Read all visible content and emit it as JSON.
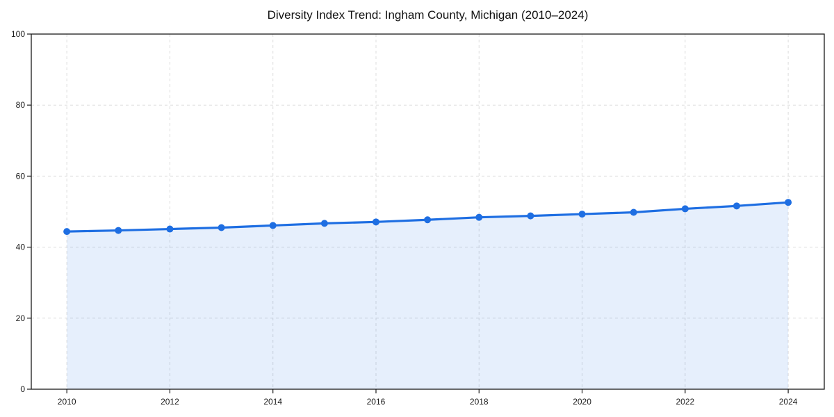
{
  "chart_data": {
    "type": "area",
    "title": "Diversity Index Trend: Ingham County, Michigan (2010–2024)",
    "series_name": "Diversity Index",
    "x": [
      2010,
      2011,
      2012,
      2013,
      2014,
      2015,
      2016,
      2017,
      2018,
      2019,
      2020,
      2021,
      2022,
      2023,
      2024
    ],
    "values": [
      44.4,
      44.7,
      45.1,
      45.5,
      46.1,
      46.7,
      47.1,
      47.7,
      48.4,
      48.8,
      49.3,
      49.8,
      50.8,
      51.6,
      52.6
    ],
    "x_ticks": [
      2010,
      2012,
      2014,
      2016,
      2018,
      2020,
      2022,
      2024
    ],
    "y_ticks": [
      0,
      20,
      40,
      60,
      80,
      100
    ],
    "xlim": [
      2009.31,
      2024.7
    ],
    "ylim": [
      0,
      100
    ],
    "xlabel": "",
    "ylabel": "",
    "grid": "dashed",
    "legend": "none",
    "colors": {
      "line": "#1e6ee2",
      "fill": "rgba(30,110,226,0.11)",
      "grid": "#dcdcdc",
      "axis": "#1a1a1a",
      "text": "#1a1a1a"
    }
  }
}
